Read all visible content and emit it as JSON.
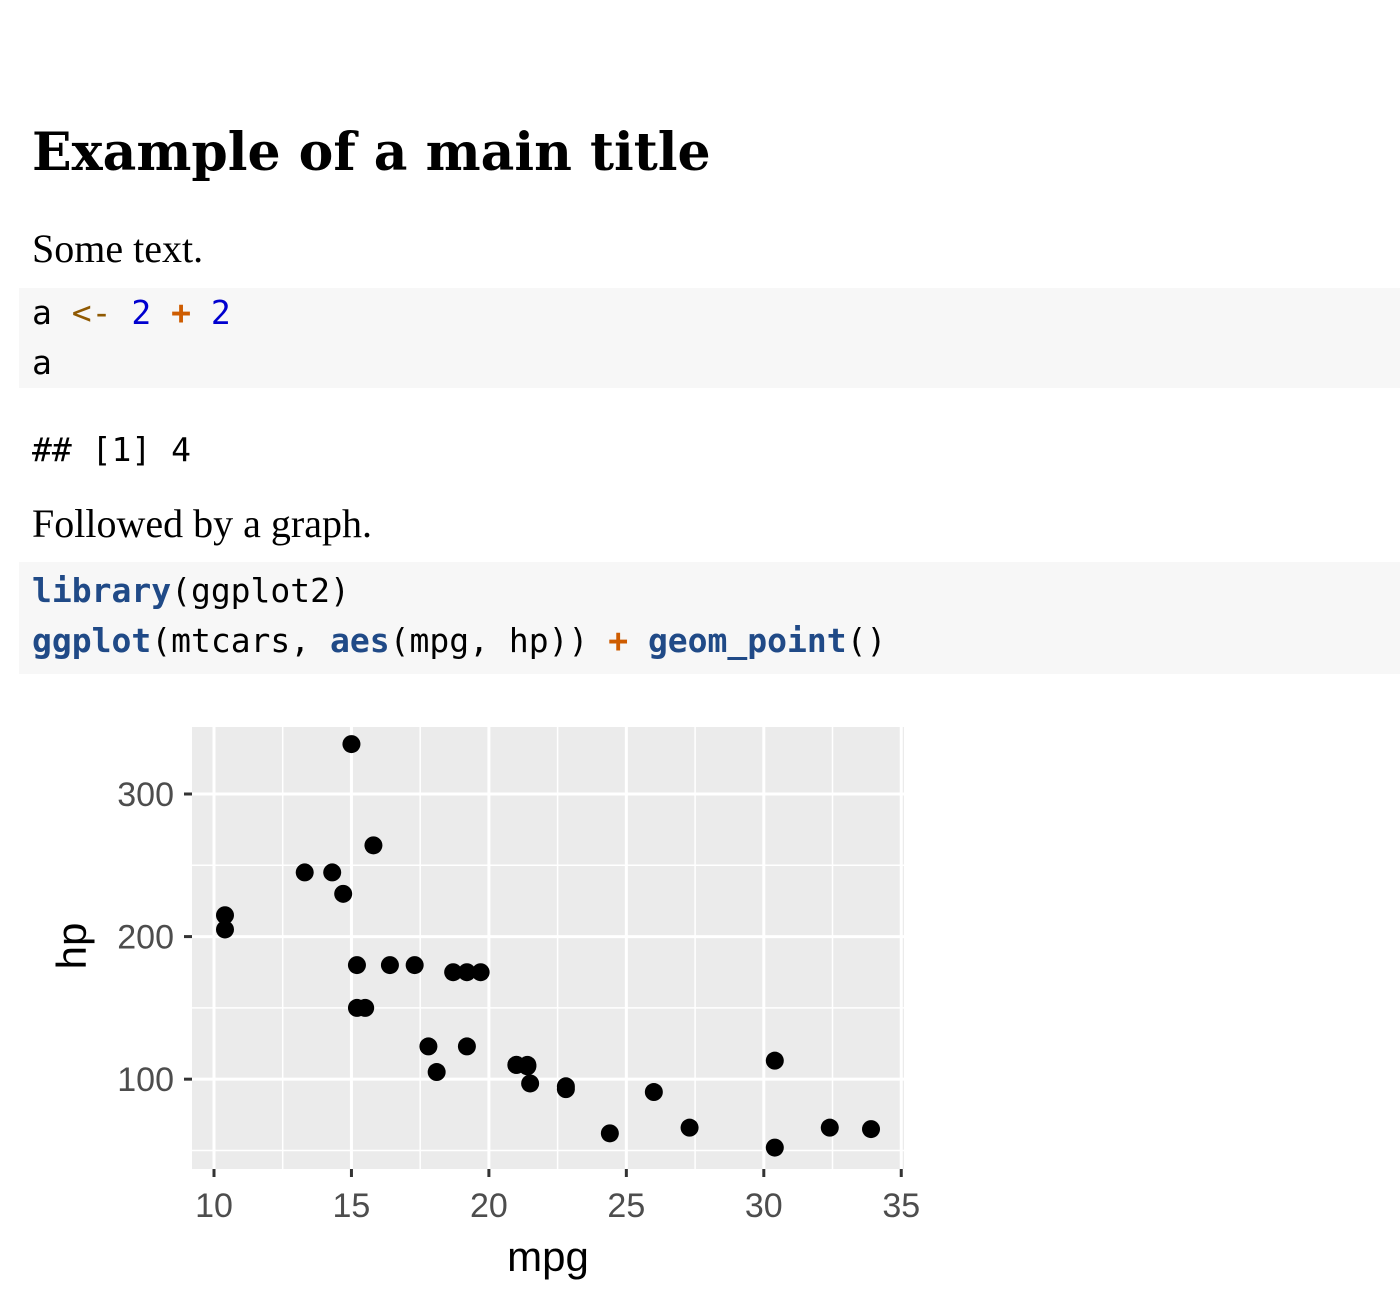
{
  "title": "Example of a main title",
  "para1": "Some text.",
  "code1": {
    "line1": {
      "var": "a",
      "assign": "<-",
      "n1": "2",
      "op": "+",
      "n2": "2"
    },
    "line2": "a"
  },
  "output1": "## [1] 4",
  "para2": "Followed by a graph.",
  "code2": {
    "line1": {
      "fn": "library",
      "rest": "(ggplot2)"
    },
    "line2": {
      "fn1": "ggplot",
      "part1": "(mtcars, ",
      "fn2": "aes",
      "part2": "(mpg, hp)) ",
      "op": "+",
      "sp": " ",
      "fn3": "geom_point",
      "part3": "()"
    }
  },
  "colors": {
    "code_bg": "#f7f7f7",
    "operator": "#ce5c00",
    "assign": "#8f5902",
    "number": "#0000cf",
    "function": "#204a87",
    "panel": "#ebebeb",
    "point": "#000000"
  },
  "chart_data": {
    "type": "scatter",
    "title": "",
    "xlabel": "mpg",
    "ylabel": "hp",
    "xlim": [
      9.2,
      35.1
    ],
    "ylim": [
      37,
      347
    ],
    "xticks": [
      10,
      15,
      20,
      25,
      30,
      35
    ],
    "yticks": [
      100,
      200,
      300
    ],
    "grid": true,
    "points": [
      [
        21.0,
        110
      ],
      [
        21.0,
        110
      ],
      [
        22.8,
        93
      ],
      [
        21.4,
        110
      ],
      [
        18.7,
        175
      ],
      [
        18.1,
        105
      ],
      [
        14.3,
        245
      ],
      [
        24.4,
        62
      ],
      [
        22.8,
        95
      ],
      [
        19.2,
        123
      ],
      [
        17.8,
        123
      ],
      [
        16.4,
        180
      ],
      [
        17.3,
        180
      ],
      [
        15.2,
        180
      ],
      [
        10.4,
        205
      ],
      [
        10.4,
        215
      ],
      [
        14.7,
        230
      ],
      [
        32.4,
        66
      ],
      [
        30.4,
        52
      ],
      [
        33.9,
        65
      ],
      [
        21.5,
        97
      ],
      [
        15.5,
        150
      ],
      [
        15.2,
        150
      ],
      [
        13.3,
        245
      ],
      [
        19.2,
        175
      ],
      [
        27.3,
        66
      ],
      [
        26.0,
        91
      ],
      [
        30.4,
        113
      ],
      [
        15.8,
        264
      ],
      [
        19.7,
        175
      ],
      [
        15.0,
        335
      ],
      [
        21.4,
        109
      ]
    ]
  }
}
